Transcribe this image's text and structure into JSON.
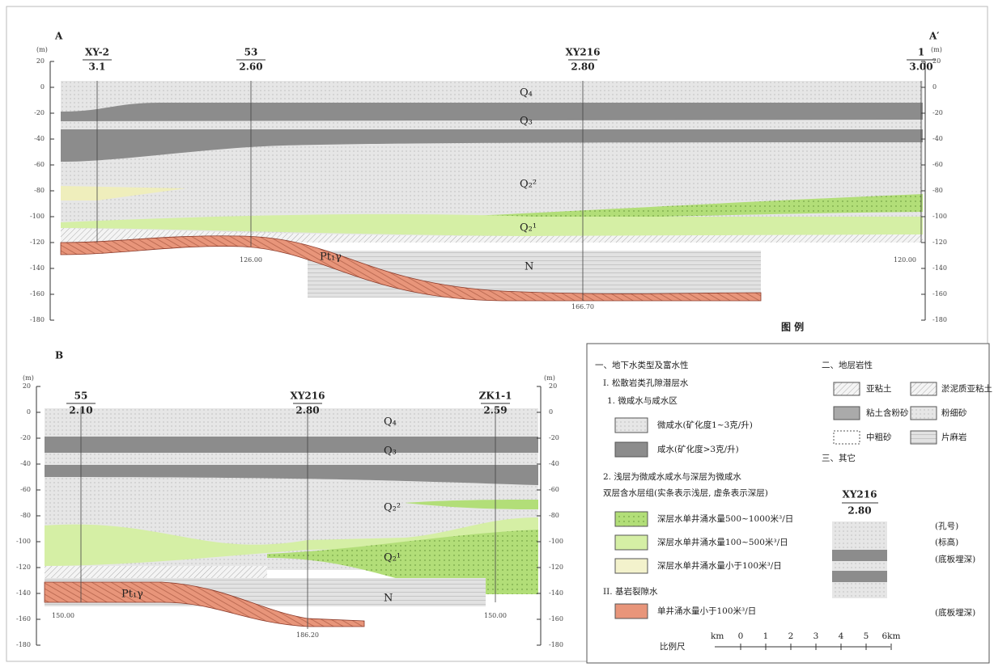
{
  "section_a": {
    "label": "A",
    "label_end": "A′",
    "unit": "(m)",
    "yticks": [
      20,
      0,
      -20,
      -40,
      -60,
      -80,
      -100,
      -120,
      -140,
      -160,
      -180
    ],
    "wells": [
      {
        "name": "XY-2",
        "elevation": "3.1"
      },
      {
        "name": "53",
        "elevation": "2.60"
      },
      {
        "name": "XY216",
        "elevation": "2.80"
      },
      {
        "name": "1",
        "elevation": "3.00"
      }
    ],
    "bottoms": [
      "126.00",
      "166.70",
      "120.00"
    ],
    "layers": [
      "Q₄",
      "Q₃",
      "Q₂²",
      "Q₂¹",
      "N",
      "Pt₁γ"
    ]
  },
  "section_b": {
    "label": "B",
    "unit": "(m)",
    "yticks": [
      20,
      0,
      -20,
      -40,
      -60,
      -80,
      -100,
      -120,
      -140,
      -160,
      -180
    ],
    "wells": [
      {
        "name": "55",
        "elevation": "2.10"
      },
      {
        "name": "XY216",
        "elevation": "2.80"
      },
      {
        "name": "ZK1-1",
        "elevation": "2.59"
      }
    ],
    "bottoms": [
      "150.00",
      "186.20",
      "150.00"
    ],
    "layers": [
      "Q₄",
      "Q₃",
      "Q₂²",
      "Q₂¹",
      "N",
      "Pt₁γ"
    ]
  },
  "legend": {
    "title": "图 例",
    "section1": {
      "heading": "一、地下水类型及富水性",
      "sub": "I. 松散岩类孔隙潜层水",
      "group1": "1. 微咸水与咸水区",
      "items1": [
        "微咸水(矿化度1~3克/升)",
        "咸水(矿化度>3克/升)"
      ],
      "group2": "2. 浅层为微咸水咸水与深层为微咸水",
      "group2_note": "双层含水层组(实条表示浅层, 虚条表示深层)",
      "items2": [
        "深层水单井涌水量500~1000米³/日",
        "深层水单井涌水量100~500米³/日",
        "深层水单井涌水量小于100米³/日"
      ],
      "sub2": "II. 基岩裂隙水",
      "items3": [
        "单井涌水量小于100米³/日"
      ]
    },
    "section2": {
      "heading": "二、地层岩性",
      "items": [
        "亚粘土",
        "淤泥质亚粘土",
        "粘土含粉砂",
        "粉细砂",
        "中粗砂",
        "片麻岩"
      ]
    },
    "section3": {
      "heading": "三、其它",
      "well": "XY216",
      "elevation": "2.80",
      "notes": [
        "(孔号)",
        "(标高)",
        "(底板埋深)",
        "(底板埋深)"
      ]
    },
    "scale": {
      "label": "比例尺",
      "unit": "km",
      "ticks": [
        "0",
        "1",
        "2",
        "3",
        "4",
        "5",
        "6km"
      ]
    }
  }
}
